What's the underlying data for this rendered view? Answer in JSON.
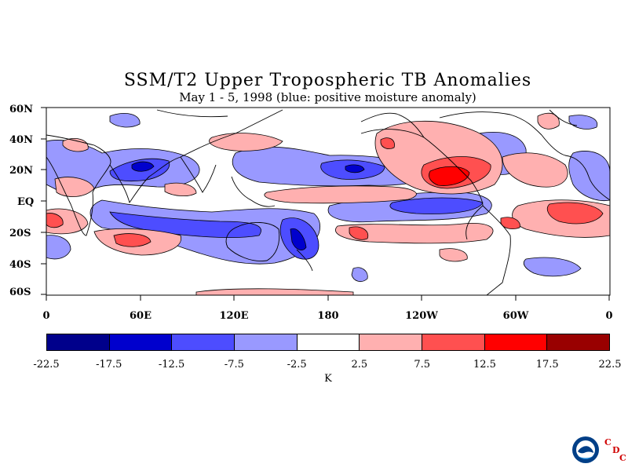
{
  "title": "SSM/T2 Upper Tropospheric TB Anomalies",
  "subtitle": "May 1 - 5, 1998 (blue: positive moisture anomaly)",
  "map": {
    "lat_labels": [
      "60N",
      "40N",
      "20N",
      "EQ",
      "20S",
      "40S",
      "60S"
    ],
    "lon_labels": [
      "0",
      "60E",
      "120E",
      "180",
      "120W",
      "60W",
      "0"
    ]
  },
  "colorbar": {
    "colors": [
      "#00008b",
      "#0000cd",
      "#4d4dff",
      "#9999ff",
      "#ffffff",
      "#ffb0b0",
      "#ff5050",
      "#ff0000",
      "#990000"
    ],
    "labels": [
      "-22.5",
      "-17.5",
      "-12.5",
      "-7.5",
      "-2.5",
      "2.5",
      "7.5",
      "12.5",
      "17.5",
      "22.5"
    ],
    "unit": "K"
  },
  "logo": {
    "icon": "noaa-logo-icon",
    "cdc_letters": [
      "C",
      "D",
      "C"
    ]
  }
}
